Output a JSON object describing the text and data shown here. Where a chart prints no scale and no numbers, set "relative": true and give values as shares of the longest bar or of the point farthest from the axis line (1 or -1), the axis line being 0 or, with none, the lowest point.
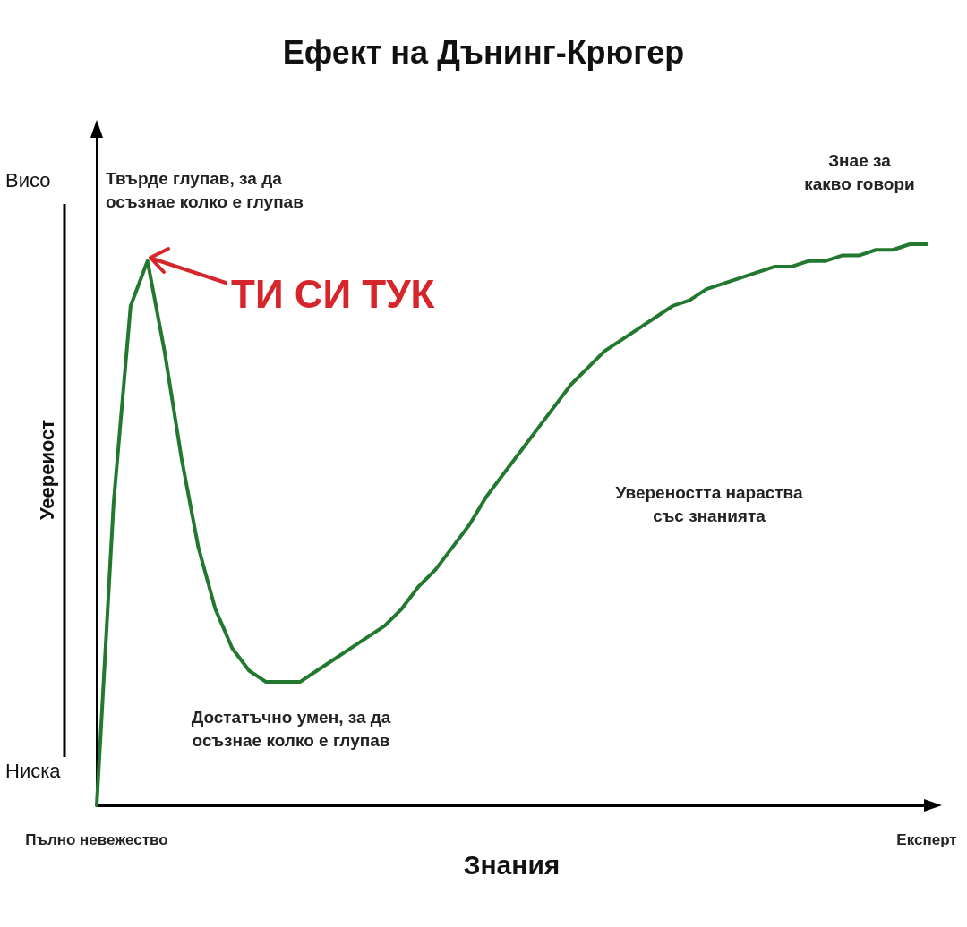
{
  "chart_data": {
    "type": "line",
    "title": "Ефект на Дънинг-Крюгер",
    "xlabel": "Знания",
    "ylabel": "Уеереиост",
    "relative": true,
    "marker": "none",
    "grid": false,
    "categories": [
      "Пълно невежество",
      null,
      null,
      null,
      null,
      null,
      null,
      null,
      null,
      null,
      null,
      null,
      null,
      null,
      null,
      null,
      null,
      null,
      null,
      null,
      null,
      null,
      null,
      null,
      null,
      null,
      null,
      null,
      null,
      null,
      null,
      null,
      null,
      null,
      null,
      null,
      null,
      null,
      null,
      null,
      null,
      null,
      null,
      null,
      null,
      null,
      null,
      null,
      null,
      "Експерт"
    ],
    "series": [
      {
        "color": "#22782e",
        "values": [
          0,
          0.54,
          0.89,
          0.97,
          0.81,
          0.62,
          0.46,
          0.35,
          0.28,
          0.24,
          0.22,
          0.22,
          0.22,
          0.24,
          0.26,
          0.28,
          0.3,
          0.32,
          0.35,
          0.39,
          0.42,
          0.46,
          0.5,
          0.55,
          0.59,
          0.63,
          0.67,
          0.71,
          0.75,
          0.78,
          0.81,
          0.83,
          0.85,
          0.87,
          0.89,
          0.9,
          0.92,
          0.93,
          0.94,
          0.95,
          0.96,
          0.96,
          0.97,
          0.97,
          0.98,
          0.98,
          0.99,
          0.99,
          1,
          1
        ]
      }
    ],
    "annotations": [
      "Висо",
      "Ниска",
      "Твърде глупав, за да\nосъзнае колко е глупав",
      "ТИ СИ ТУК",
      "Знае за\nкакво говори",
      "Увереността нараства\nсъс знанията",
      "Достатъчно умен, за да\nосъзнае колко е глупав"
    ]
  }
}
